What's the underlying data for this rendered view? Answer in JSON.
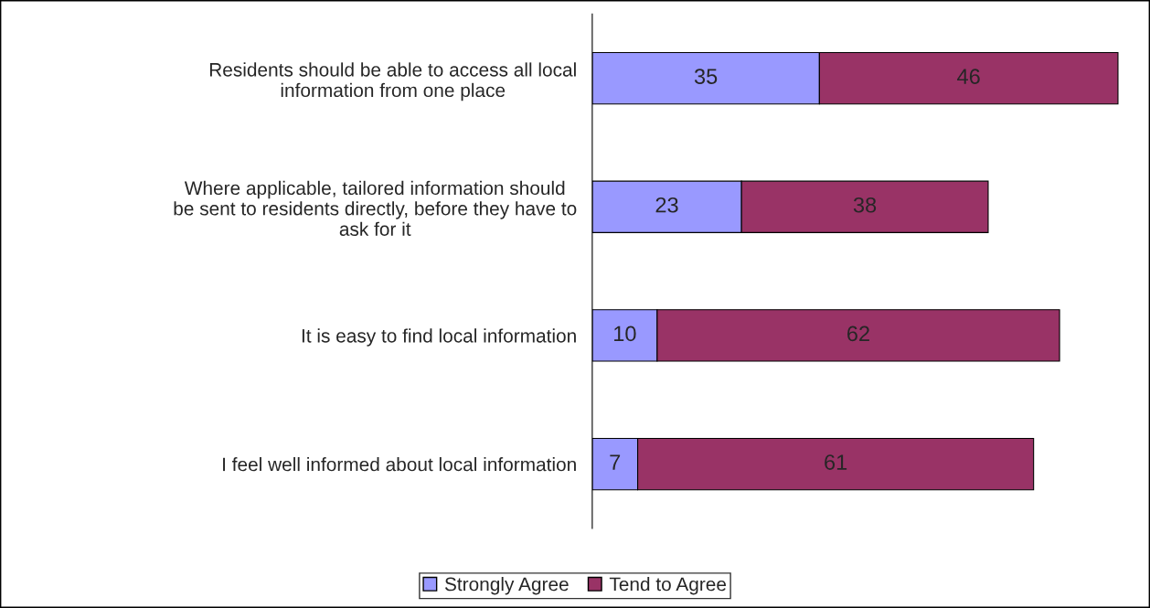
{
  "chart_data": {
    "type": "bar",
    "orientation": "horizontal",
    "stacked": true,
    "categories": [
      "Residents should be able to access all local\ninformation from one place",
      "Where applicable, tailored information should\nbe sent to residents directly, before they have to\nask for it",
      "It is easy to find local information",
      "I feel well informed about local information"
    ],
    "series": [
      {
        "name": "Strongly Agree",
        "color": "#9999ff",
        "values": [
          35,
          23,
          10,
          7
        ]
      },
      {
        "name": "Tend to Agree",
        "color": "#993366",
        "values": [
          46,
          38,
          62,
          61
        ]
      }
    ],
    "data_labels": true,
    "legend": "bottom",
    "grid": false
  }
}
